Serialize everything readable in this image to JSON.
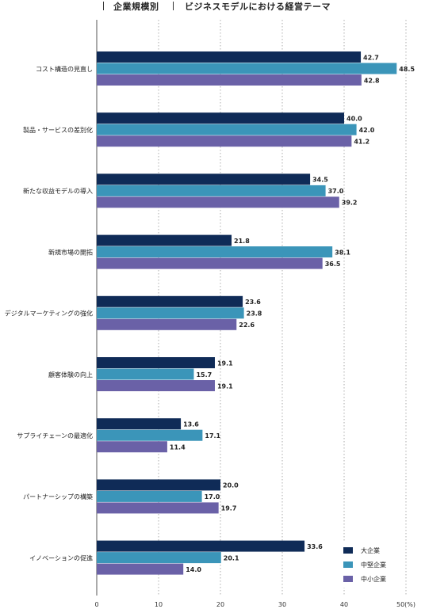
{
  "header": {
    "category": "企業規模別",
    "subject": "ビジネスモデルにおける経営テーマ"
  },
  "colors": {
    "large": "#0f2b57",
    "mid": "#3b95b9",
    "small": "#6a61a7",
    "grid": "#9a9a9a",
    "axis": "#555555"
  },
  "chart_data": {
    "type": "bar",
    "orientation": "horizontal",
    "categories": [
      "コスト構造の見直し",
      "製品・サービスの差別化",
      "新たな収益モデルの導入",
      "新規市場の開拓",
      "デジタルマーケティングの強化",
      "顧客体験の向上",
      "サプライチェーンの最適化",
      "パートナーシップの構築",
      "イノベーションの促進"
    ],
    "series": [
      {
        "name": "大企業",
        "color": "#0f2b57",
        "values": [
          42.7,
          40.0,
          34.5,
          21.8,
          23.6,
          19.1,
          13.6,
          20.0,
          33.6
        ]
      },
      {
        "name": "中堅企業",
        "color": "#3b95b9",
        "values": [
          48.5,
          42.0,
          37.0,
          38.1,
          23.8,
          15.7,
          17.1,
          17.0,
          20.1
        ]
      },
      {
        "name": "中小企業",
        "color": "#6a61a7",
        "values": [
          42.8,
          41.2,
          39.2,
          36.5,
          22.6,
          19.1,
          11.4,
          19.7,
          14.0
        ]
      }
    ],
    "xlim": [
      0,
      50
    ],
    "xticks": [
      "0",
      "10",
      "20",
      "30",
      "40",
      "50(%)"
    ],
    "grid": true,
    "legend_position": "bottom-right"
  }
}
